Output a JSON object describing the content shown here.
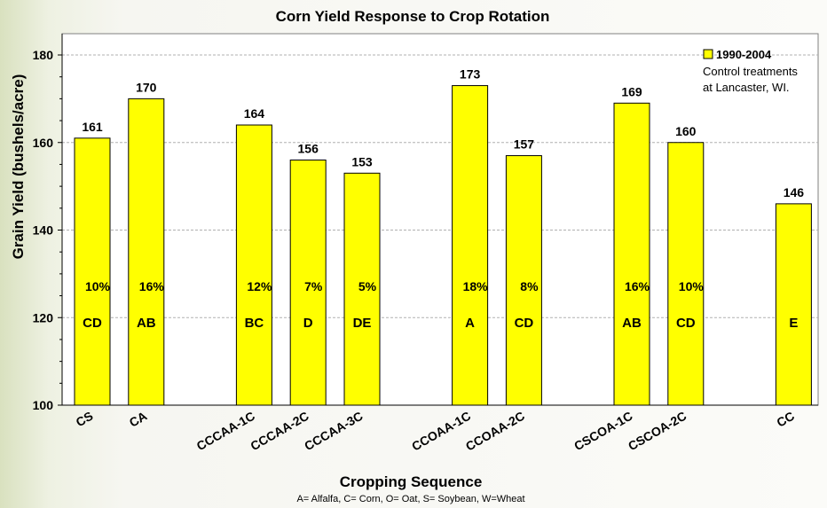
{
  "chart_data": {
    "type": "bar",
    "title": "Corn Yield Response to Crop Rotation",
    "xlabel": "Cropping Sequence",
    "ylabel": "Grain Yield (bushels/acre)",
    "footnote": "A= Alfalfa,  C= Corn,  O= Oat,  S= Soybean,  W=Wheat",
    "ylim": [
      100,
      180
    ],
    "yticks": [
      100,
      120,
      140,
      160,
      180
    ],
    "grid": true,
    "legend": {
      "position": "top-right",
      "series_label": "1990-2004",
      "note_line1": "Control treatments",
      "note_line2": "at Lancaster, WI."
    },
    "bar_color": "#ffff00",
    "series": [
      {
        "name": "1990-2004",
        "bars": [
          {
            "category": "CS",
            "value": 161,
            "percent": "10%",
            "group": "CD"
          },
          {
            "category": "CA",
            "value": 170,
            "percent": "16%",
            "group": "AB"
          },
          {
            "category": "CCCAA-1C",
            "value": 164,
            "percent": "12%",
            "group": "BC"
          },
          {
            "category": "CCCAA-2C",
            "value": 156,
            "percent": "7%",
            "group": "D"
          },
          {
            "category": "CCCAA-3C",
            "value": 153,
            "percent": "5%",
            "group": "DE"
          },
          {
            "category": "CCOAA-1C",
            "value": 173,
            "percent": "18%",
            "group": "A"
          },
          {
            "category": "CCOAA-2C",
            "value": 157,
            "percent": "8%",
            "group": "CD"
          },
          {
            "category": "CSCOA-1C",
            "value": 169,
            "percent": "16%",
            "group": "AB"
          },
          {
            "category": "CSCOA-2C",
            "value": 160,
            "percent": "10%",
            "group": "CD"
          },
          {
            "category": "CC",
            "value": 146,
            "percent": "",
            "group": "E"
          }
        ]
      }
    ]
  }
}
